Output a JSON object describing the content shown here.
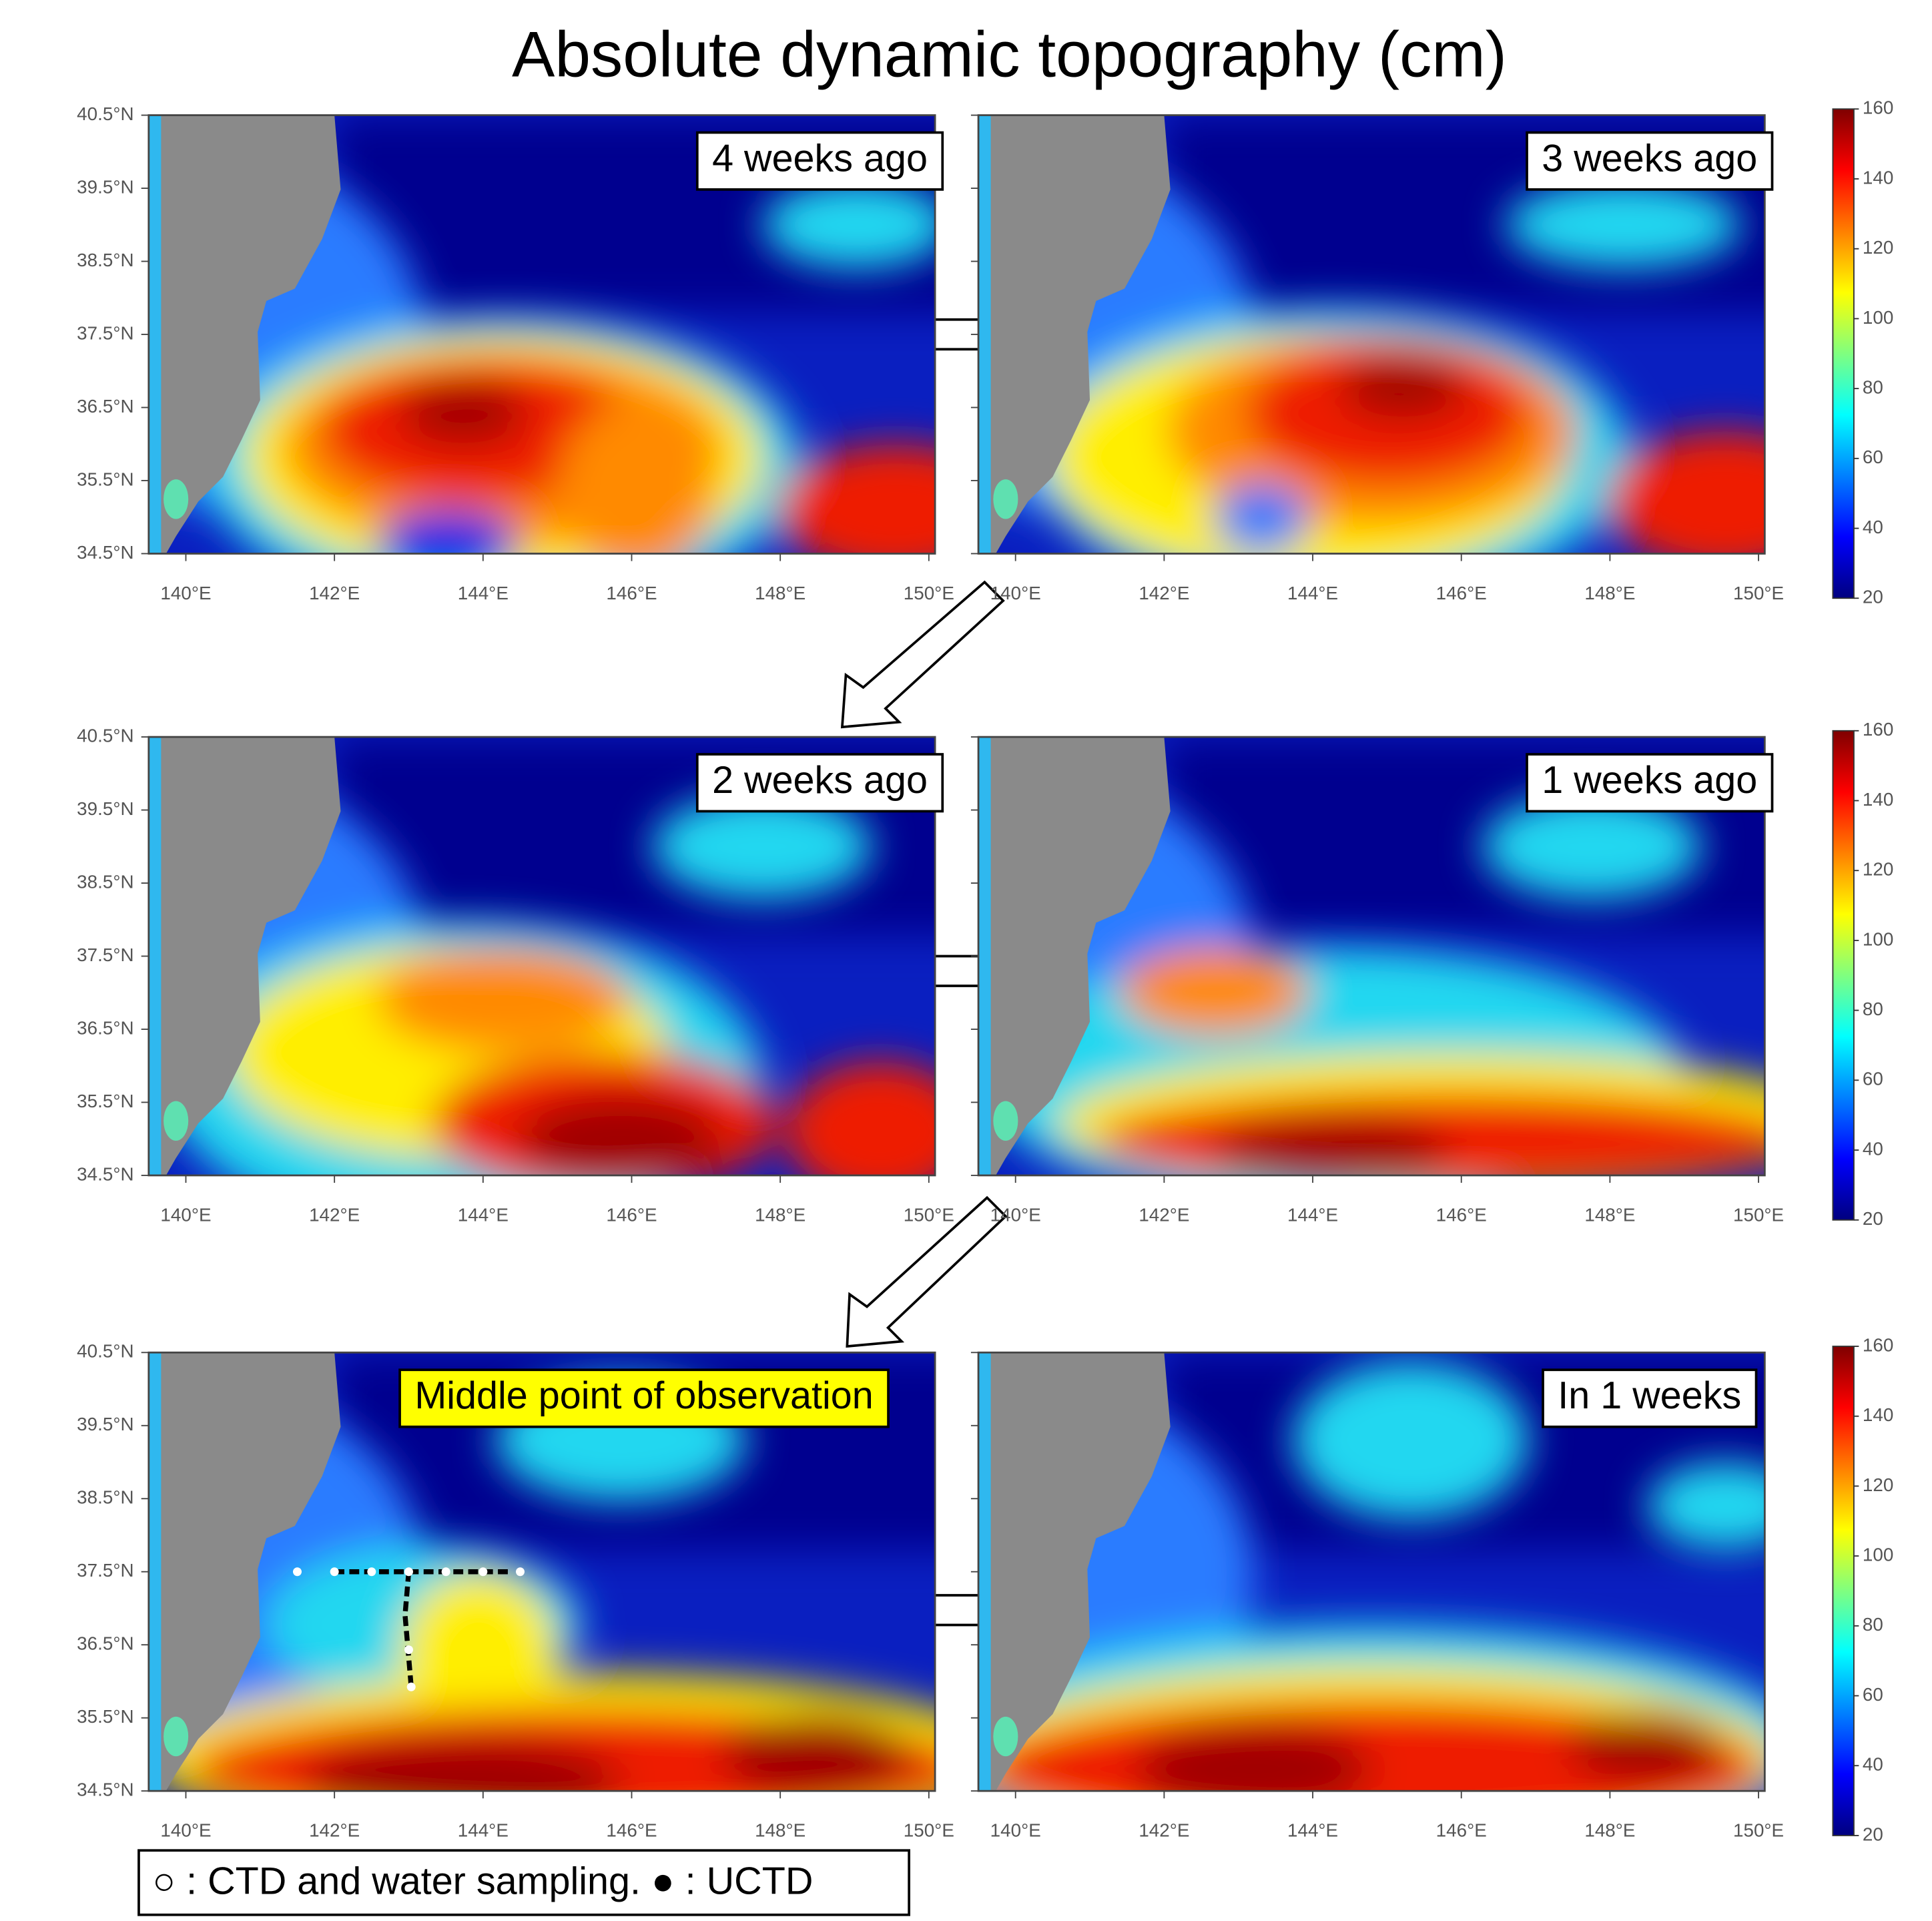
{
  "title": "Absolute dynamic topography (cm)",
  "panels": [
    {
      "label": "4 weeks ago"
    },
    {
      "label": "3 weeks ago"
    },
    {
      "label": "2 weeks ago"
    },
    {
      "label": "1 weeks ago"
    },
    {
      "label": "Middle point of observation"
    },
    {
      "label": "In 1 weeks"
    }
  ],
  "lat_ticks": [
    "40.5°N",
    "39.5°N",
    "38.5°N",
    "37.5°N",
    "36.5°N",
    "35.5°N",
    "34.5°N"
  ],
  "lon_ticks": [
    "140°E",
    "142°E",
    "144°E",
    "146°E",
    "148°E",
    "150°E"
  ],
  "colorbar": {
    "ticks": [
      20,
      40,
      60,
      80,
      100,
      120,
      140,
      160
    ],
    "lim": [
      20,
      160
    ]
  },
  "legend": "○ : CTD and water sampling. ● : UCTD"
}
